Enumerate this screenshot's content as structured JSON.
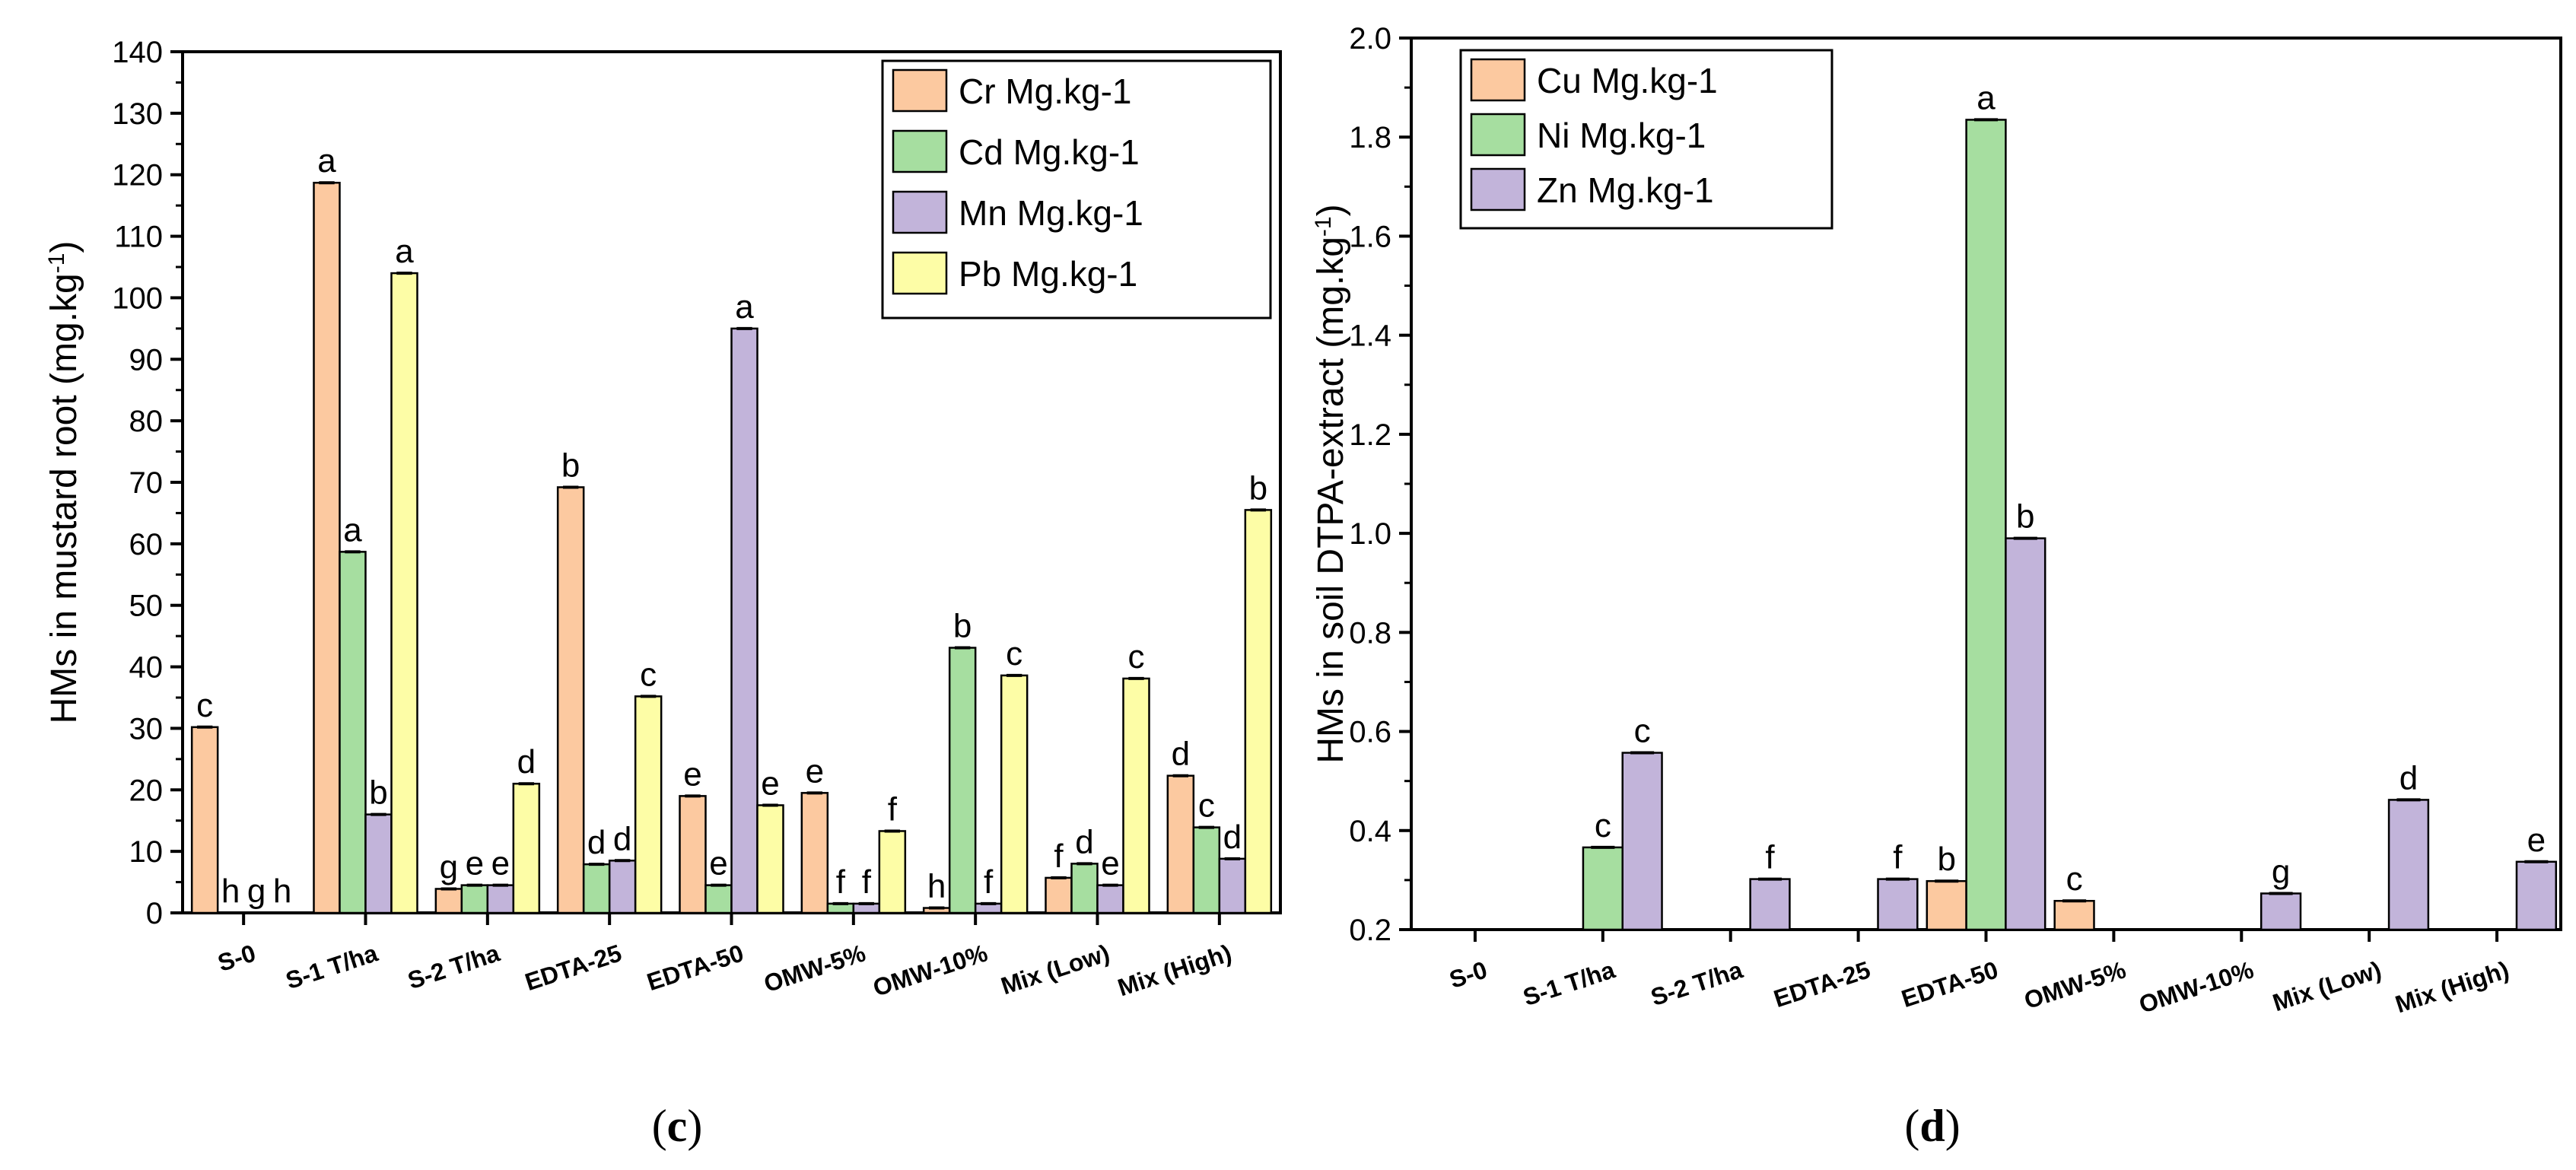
{
  "colors": {
    "Cr": "#fcc9a0",
    "Cd": "#a6dea0",
    "Mn": "#c2b4da",
    "Pb": "#fdfda6",
    "Cu": "#fcc9a0",
    "Ni": "#a6dea0",
    "Zn": "#c2b4da"
  },
  "chart_data": [
    {
      "type": "bar",
      "panel_label": "c",
      "ylabel_main": "HMs in mustard root (mg.kg",
      "ylabel_sup": "-1",
      "ylabel_end": ")",
      "xlabel": "",
      "ylim": [
        0,
        140
      ],
      "yticks": [
        "0",
        "10",
        "20",
        "30",
        "40",
        "50",
        "60",
        "70",
        "80",
        "90",
        "100",
        "110",
        "120",
        "130",
        "140"
      ],
      "legend_position": "top-right",
      "categories": [
        "S-0",
        "S-1 T/ha",
        "S-2 T/ha",
        "EDTA-25",
        "EDTA-50",
        "OMW-5%",
        "OMW-10%",
        "Mix (Low)",
        "Mix (High)"
      ],
      "series": [
        {
          "name": "Cr Mg.kg-1",
          "color_key": "Cr",
          "values": [
            30.2,
            118.7,
            3.9,
            69.2,
            19.0,
            19.5,
            0.8,
            5.7,
            22.3
          ],
          "letters": [
            "c",
            "a",
            "g",
            "b",
            "e",
            "e",
            "h",
            "f",
            "d"
          ]
        },
        {
          "name": "Cd Mg.kg-1",
          "color_key": "Cd",
          "values": [
            0.0,
            58.7,
            4.5,
            7.9,
            4.5,
            1.5,
            43.1,
            8.0,
            13.9
          ],
          "letters": [
            "h",
            "a",
            "e",
            "d",
            "e",
            "f",
            "b",
            "d",
            "c"
          ]
        },
        {
          "name": "Mn Mg.kg-1",
          "color_key": "Mn",
          "values": [
            0.0,
            16.0,
            4.5,
            8.5,
            95.0,
            1.5,
            1.5,
            4.5,
            8.8
          ],
          "letters": [
            "g",
            "b",
            "e",
            "d",
            "a",
            "f",
            "f",
            "e",
            "d"
          ]
        },
        {
          "name": "Pb Mg.kg-1",
          "color_key": "Pb",
          "values": [
            0.0,
            104.0,
            21.0,
            35.2,
            17.5,
            13.3,
            38.6,
            38.1,
            65.5
          ],
          "letters": [
            "h",
            "a",
            "d",
            "c",
            "e",
            "f",
            "c",
            "c",
            "b"
          ]
        }
      ]
    },
    {
      "type": "bar",
      "panel_label": "d",
      "ylabel_main": "HMs in soil DTPA-extract (mg.kg",
      "ylabel_sup": "-1",
      "ylabel_end": ")",
      "xlabel": "",
      "ylim": [
        0.2,
        2.0
      ],
      "yticks": [
        "0.2",
        "0.4",
        "0.6",
        "0.8",
        "1.0",
        "1.2",
        "1.4",
        "1.6",
        "1.8",
        "2.0"
      ],
      "legend_position": "top-left",
      "categories": [
        "S-0",
        "S-1 T/ha",
        "S-2 T/ha",
        "EDTA-25",
        "EDTA-50",
        "OMW-5%",
        "OMW-10%",
        "Mix (Low)",
        "Mix (High)"
      ],
      "series": [
        {
          "name": "Cu Mg.kg-1",
          "color_key": "Cu",
          "values": [
            null,
            null,
            null,
            null,
            0.298,
            0.258,
            null,
            null,
            null
          ],
          "letters": [
            "",
            "",
            "",
            "",
            "b",
            "c",
            "",
            "",
            ""
          ]
        },
        {
          "name": "Ni Mg.kg-1",
          "color_key": "Ni",
          "values": [
            null,
            0.366,
            null,
            null,
            1.835,
            null,
            null,
            null,
            null
          ],
          "letters": [
            "",
            "c",
            "",
            "",
            "a",
            "",
            "",
            "",
            ""
          ]
        },
        {
          "name": "Zn Mg.kg-1",
          "color_key": "Zn",
          "values": [
            null,
            0.557,
            0.302,
            0.302,
            0.99,
            null,
            0.273,
            0.462,
            0.337
          ],
          "letters": [
            "",
            "c",
            "f",
            "f",
            "b",
            "",
            "g",
            "d",
            "e"
          ]
        }
      ]
    }
  ]
}
